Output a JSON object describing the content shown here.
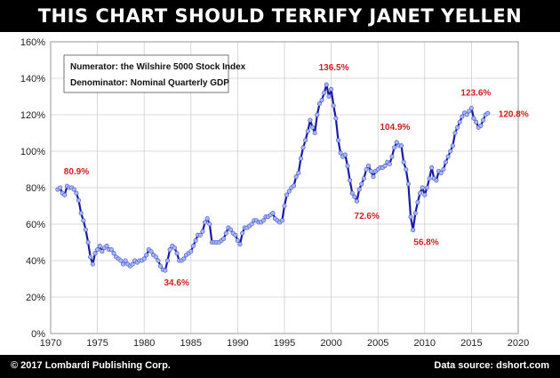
{
  "header": {
    "title": "THIS CHART SHOULD TERRIFY JANET YELLEN"
  },
  "footer": {
    "copyright": "© 2017 Lombardi Publishing Corp.",
    "source": "Data source: dshort.com"
  },
  "chart_data": {
    "type": "line",
    "title": "THIS CHART SHOULD TERRIFY JANET YELLEN",
    "xlabel": "",
    "ylabel": "",
    "xlim": [
      1970,
      2020
    ],
    "ylim": [
      0,
      160
    ],
    "grid": true,
    "line_color": "#1a1aa6",
    "marker_color": "#a9b8f2",
    "annotation_color": "#d02020",
    "x_ticks": [
      "1970",
      "1975",
      "1980",
      "1985",
      "1990",
      "1995",
      "2000",
      "2005",
      "2010",
      "2015",
      "2020"
    ],
    "y_ticks": [
      "0%",
      "20%",
      "40%",
      "60%",
      "80%",
      "100%",
      "120%",
      "140%",
      "160%"
    ],
    "notes": [
      "Numerator: the Wilshire 5000 Stock Index",
      "Denominator: Nominal Quarterly GDP"
    ],
    "annotations": [
      {
        "label": "80.9%",
        "x": 1971.5,
        "y": 80.9
      },
      {
        "label": "34.6%",
        "x": 1982.5,
        "y": 34.6
      },
      {
        "label": "136.5%",
        "x": 2000.0,
        "y": 136.5
      },
      {
        "label": "72.6%",
        "x": 2002.75,
        "y": 72.6
      },
      {
        "label": "104.9%",
        "x": 2007.5,
        "y": 104.9
      },
      {
        "label": "56.8%",
        "x": 2009.0,
        "y": 56.8
      },
      {
        "label": "123.6%",
        "x": 2015.0,
        "y": 123.6
      },
      {
        "label": "120.8%",
        "x": 2016.75,
        "y": 120.8
      }
    ],
    "series": [
      {
        "x": [
          1970.75,
          1971.0,
          1971.25,
          1971.5,
          1971.75,
          1972.0,
          1972.25,
          1972.5,
          1972.75,
          1973.0,
          1973.25,
          1973.5,
          1973.75,
          1974.0,
          1974.25,
          1974.5,
          1974.75,
          1975.0,
          1975.25,
          1975.5,
          1975.75,
          1976.0,
          1976.25,
          1976.5,
          1976.75,
          1977.0,
          1977.25,
          1977.5,
          1977.75,
          1978.0,
          1978.25,
          1978.5,
          1978.75,
          1979.0,
          1979.25,
          1979.5,
          1979.75,
          1980.0,
          1980.25,
          1980.5,
          1980.75,
          1981.0,
          1981.25,
          1981.5,
          1981.75,
          1982.0,
          1982.25,
          1982.5,
          1982.75,
          1983.0,
          1983.25,
          1983.5,
          1983.75,
          1984.0,
          1984.25,
          1984.5,
          1984.75,
          1985.0,
          1985.25,
          1985.5,
          1985.75,
          1986.0,
          1986.25,
          1986.5,
          1986.75,
          1987.0,
          1987.25,
          1987.5,
          1987.75,
          1988.0,
          1988.25,
          1988.5,
          1988.75,
          1989.0,
          1989.25,
          1989.5,
          1989.75,
          1990.0,
          1990.25,
          1990.5,
          1990.75,
          1991.0,
          1991.25,
          1991.5,
          1991.75,
          1992.0,
          1992.25,
          1992.5,
          1992.75,
          1993.0,
          1993.25,
          1993.5,
          1993.75,
          1994.0,
          1994.25,
          1994.5,
          1994.75,
          1995.0,
          1995.25,
          1995.5,
          1995.75,
          1996.0,
          1996.25,
          1996.5,
          1996.75,
          1997.0,
          1997.25,
          1997.5,
          1997.75,
          1998.0,
          1998.25,
          1998.5,
          1998.75,
          1999.0,
          1999.25,
          1999.5,
          1999.75,
          2000.0,
          2000.25,
          2000.5,
          2000.75,
          2001.0,
          2001.25,
          2001.5,
          2001.75,
          2002.0,
          2002.25,
          2002.5,
          2002.75,
          2003.0,
          2003.25,
          2003.5,
          2003.75,
          2004.0,
          2004.25,
          2004.5,
          2004.75,
          2005.0,
          2005.25,
          2005.5,
          2005.75,
          2006.0,
          2006.25,
          2006.5,
          2006.75,
          2007.0,
          2007.25,
          2007.5,
          2007.75,
          2008.0,
          2008.25,
          2008.5,
          2008.75,
          2009.0,
          2009.25,
          2009.5,
          2009.75,
          2010.0,
          2010.25,
          2010.5,
          2010.75,
          2011.0,
          2011.25,
          2011.5,
          2011.75,
          2012.0,
          2012.25,
          2012.5,
          2012.75,
          2013.0,
          2013.25,
          2013.5,
          2013.75,
          2014.0,
          2014.25,
          2014.5,
          2014.75,
          2015.0,
          2015.25,
          2015.5,
          2015.75,
          2016.0,
          2016.25,
          2016.5,
          2016.75
        ],
        "y": [
          79,
          80,
          77,
          76,
          80.9,
          80,
          80,
          79,
          77,
          73,
          66,
          62,
          57,
          50,
          42,
          38,
          44,
          46,
          48,
          45,
          47,
          48,
          46,
          46,
          44,
          42,
          41,
          40,
          38,
          40,
          38,
          37,
          38,
          40,
          39,
          40,
          40,
          41,
          43,
          46,
          45,
          43,
          42,
          40,
          37,
          35,
          34.6,
          40,
          46,
          48,
          47,
          44,
          40,
          40,
          41,
          43,
          44,
          45,
          48,
          51,
          54,
          54,
          56,
          61,
          63,
          60,
          50,
          50,
          50,
          50,
          51,
          52,
          55,
          58,
          57,
          55,
          54,
          51,
          49,
          55,
          58,
          58,
          59,
          60,
          62,
          62,
          61,
          61,
          62,
          64,
          64,
          65,
          66,
          63,
          62,
          61,
          62,
          70,
          76,
          78,
          80,
          81,
          86,
          88,
          96,
          102,
          106,
          111,
          117,
          113,
          110,
          120,
          126,
          128,
          132,
          136.5,
          130,
          134,
          125,
          118,
          106,
          99,
          97,
          98,
          92,
          84,
          77,
          75,
          72.6,
          79,
          82,
          85,
          90,
          92,
          89,
          86,
          89,
          90,
          91,
          91,
          92,
          94,
          93,
          97,
          102,
          104.9,
          103,
          103,
          94,
          90,
          82,
          64,
          56.8,
          66,
          72,
          77,
          80,
          76,
          80,
          85,
          91,
          85,
          84,
          89,
          88,
          90,
          94,
          97,
          100,
          103,
          110,
          113,
          116,
          119,
          121,
          120,
          122,
          123.6,
          118,
          116,
          113,
          114,
          117,
          120,
          120.8
        ]
      }
    ]
  }
}
